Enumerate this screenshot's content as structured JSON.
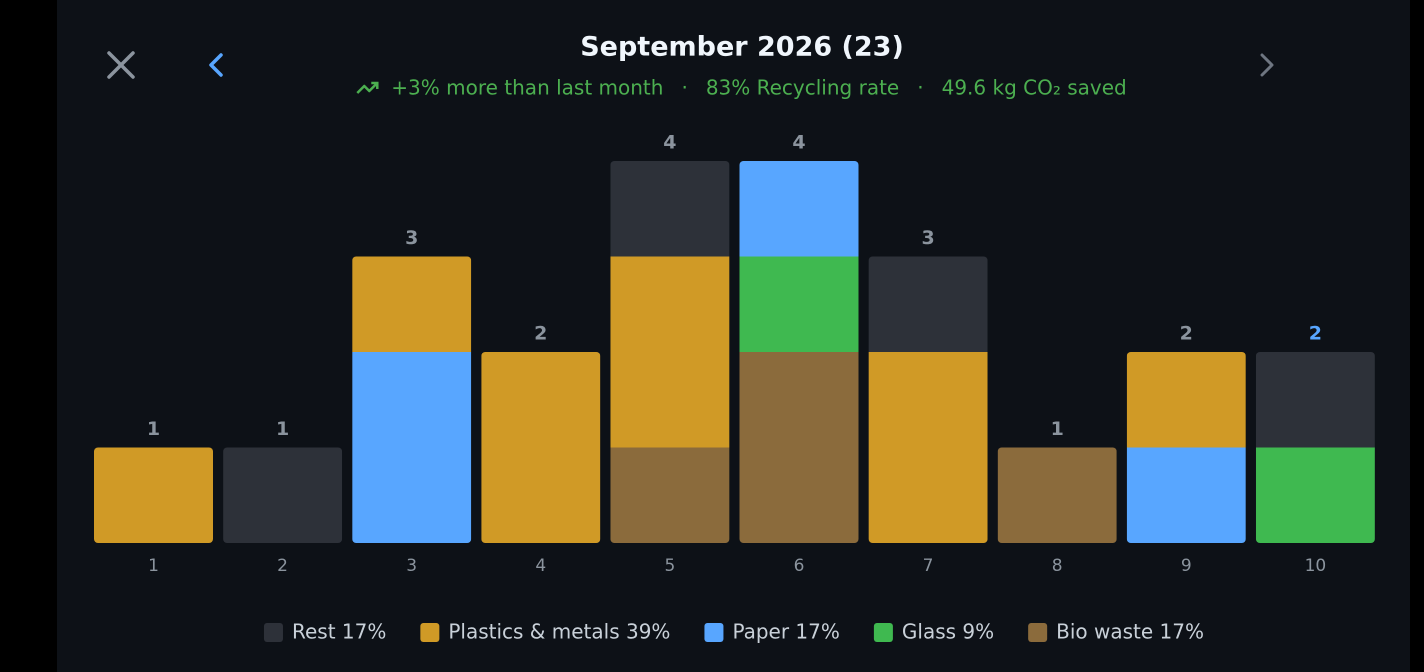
{
  "header": {
    "title": "September 2026 (23)",
    "subtitle": [
      "+3% more than last month",
      "83% Recycling rate",
      "49.6 kg CO₂ saved"
    ],
    "separator": "·"
  },
  "chart_data": {
    "type": "stacked-bar",
    "categories": [
      "1",
      "2",
      "3",
      "4",
      "5",
      "6",
      "7",
      "8",
      "9",
      "10"
    ],
    "totals": [
      1,
      1,
      3,
      2,
      4,
      4,
      3,
      1,
      2,
      2
    ],
    "selected_index": 9,
    "stack_order": [
      4,
      3,
      2,
      1,
      0
    ],
    "series": [
      {
        "name": "Rest 17%",
        "color": "#2d3139",
        "values": [
          0,
          1,
          0,
          0,
          1,
          0,
          1,
          0,
          0,
          1
        ]
      },
      {
        "name": "Plastics & metals 39%",
        "color": "#d09a26",
        "values": [
          1,
          0,
          1,
          2,
          2,
          0,
          2,
          0,
          1,
          0
        ]
      },
      {
        "name": "Paper 17%",
        "color": "#58a6ff",
        "values": [
          0,
          0,
          2,
          0,
          0,
          1,
          0,
          0,
          1,
          0
        ]
      },
      {
        "name": "Glass 9%",
        "color": "#3fb950",
        "values": [
          0,
          0,
          0,
          0,
          0,
          1,
          0,
          0,
          0,
          1
        ]
      },
      {
        "name": "Bio waste 17%",
        "color": "#8b6b3c",
        "values": [
          0,
          0,
          0,
          0,
          1,
          2,
          0,
          1,
          0,
          0
        ]
      }
    ]
  }
}
